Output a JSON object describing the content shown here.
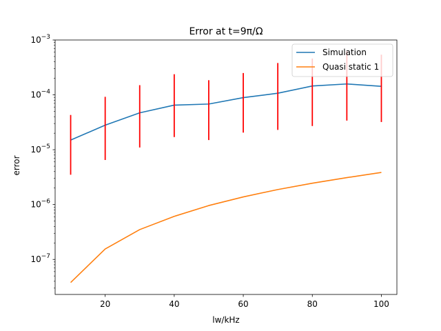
{
  "chart_data": {
    "type": "line",
    "title": "Error at t=9π/Ω",
    "xlabel": "lw/kHz",
    "ylabel": "error",
    "yscale": "log",
    "xlim": [
      5.5,
      104.5
    ],
    "ylim": [
      2.3e-08,
      0.001
    ],
    "xticks": [
      20,
      40,
      60,
      80,
      100
    ],
    "xtick_labels": [
      "20",
      "40",
      "60",
      "80",
      "100"
    ],
    "yticks": [
      1e-07,
      1e-06,
      1e-05,
      0.0001,
      0.001
    ],
    "ytick_labels": [
      {
        "base": "10",
        "exp": "−7"
      },
      {
        "base": "10",
        "exp": "−6"
      },
      {
        "base": "10",
        "exp": "−5"
      },
      {
        "base": "10",
        "exp": "−4"
      },
      {
        "base": "10",
        "exp": "−3"
      }
    ],
    "grid": false,
    "legend_position": "top-right",
    "x": [
      10,
      20,
      30,
      40,
      50,
      60,
      70,
      80,
      90,
      100
    ],
    "series": [
      {
        "name": "Simulation",
        "color": "#1f77b4",
        "values": [
          1.5e-05,
          2.8e-05,
          4.7e-05,
          6.5e-05,
          6.8e-05,
          8.9e-05,
          0.000107,
          0.000145,
          0.000158,
          0.000143
        ],
        "error_color": "#ff0000",
        "error_low": [
          3.5e-06,
          6.5e-06,
          1.1e-05,
          1.7e-05,
          1.5e-05,
          2.05e-05,
          2.3e-05,
          2.7e-05,
          3.4e-05,
          3.2e-05
        ],
        "error_high": [
          4.3e-05,
          9.2e-05,
          0.00015,
          0.000238,
          0.000185,
          0.00025,
          0.00038,
          0.00046,
          0.00062,
          0.00054
        ]
      },
      {
        "name": "Quasi static 1",
        "color": "#ff7f0e",
        "values": [
          3.8e-08,
          1.55e-07,
          3.5e-07,
          6.1e-07,
          9.6e-07,
          1.38e-06,
          1.88e-06,
          2.45e-06,
          3.1e-06,
          3.85e-06
        ]
      }
    ]
  }
}
